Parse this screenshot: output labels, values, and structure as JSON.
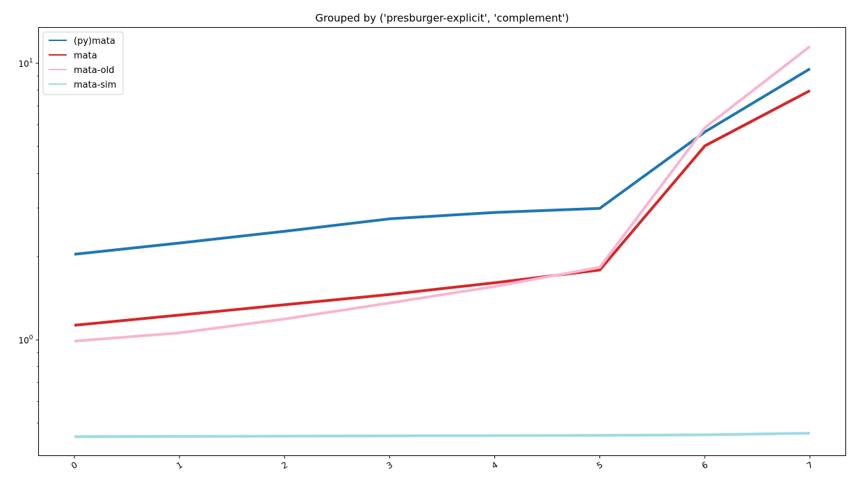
{
  "chart_data": {
    "type": "line",
    "title": "Grouped by ('presburger-explicit', 'complement')",
    "xlabel": "",
    "ylabel": "",
    "y_scale": "log",
    "grid": false,
    "legend_placement": "top-left",
    "x": [
      0,
      1,
      2,
      3,
      4,
      5,
      6,
      7
    ],
    "x_tick_labels": [
      "0",
      "1",
      "2",
      "3",
      "4",
      "5",
      "6",
      "7"
    ],
    "y_ticks": [
      {
        "value": 1,
        "base": "10",
        "exponent": "0"
      },
      {
        "value": 10,
        "base": "10",
        "exponent": "1"
      }
    ],
    "ylim": [
      0.42,
      13.5
    ],
    "series": [
      {
        "name": "(py)mata",
        "color": "#1f77b4",
        "values": [
          2.04,
          2.24,
          2.47,
          2.74,
          2.89,
          2.99,
          5.65,
          9.55
        ]
      },
      {
        "name": "mata",
        "color": "#d62728",
        "values": [
          1.13,
          1.23,
          1.34,
          1.46,
          1.61,
          1.79,
          5.03,
          7.96
        ]
      },
      {
        "name": "mata-old",
        "color": "#f7b6d2",
        "values": [
          0.99,
          1.06,
          1.19,
          1.36,
          1.56,
          1.83,
          5.85,
          11.5
        ]
      },
      {
        "name": "mata-sim",
        "color": "#9edae5",
        "values": [
          0.447,
          0.448,
          0.449,
          0.45,
          0.451,
          0.452,
          0.454,
          0.46
        ]
      }
    ]
  }
}
